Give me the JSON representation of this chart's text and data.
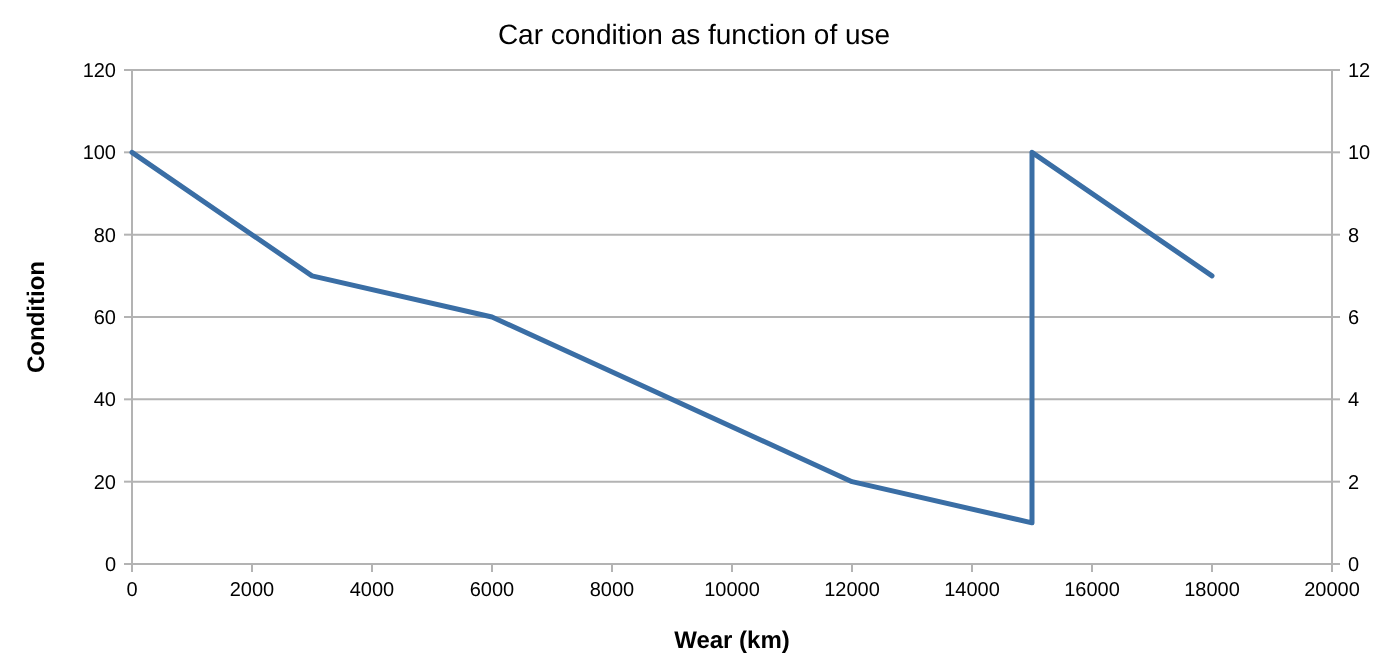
{
  "chart_data": {
    "type": "line",
    "title": "Car condition as function of use",
    "xlabel": "Wear (km)",
    "ylabel": "Condition",
    "x": [
      0,
      3000,
      6000,
      12000,
      15000,
      15000,
      18000
    ],
    "series": [
      {
        "color": "#3a6ea5",
        "values": [
          100,
          70,
          60,
          20,
          10,
          100,
          70
        ]
      }
    ],
    "xlim": [
      0,
      20000
    ],
    "xticks": [
      0,
      2000,
      4000,
      6000,
      8000,
      10000,
      12000,
      14000,
      16000,
      18000,
      20000
    ],
    "ylim": [
      0,
      120
    ],
    "yticks": [
      0,
      20,
      40,
      60,
      80,
      100,
      120
    ],
    "y2lim": [
      0,
      12
    ],
    "y2ticks": [
      0,
      2,
      4,
      6,
      8,
      10,
      12
    ],
    "grid": "y",
    "marker": "none",
    "line_style": "solid"
  }
}
